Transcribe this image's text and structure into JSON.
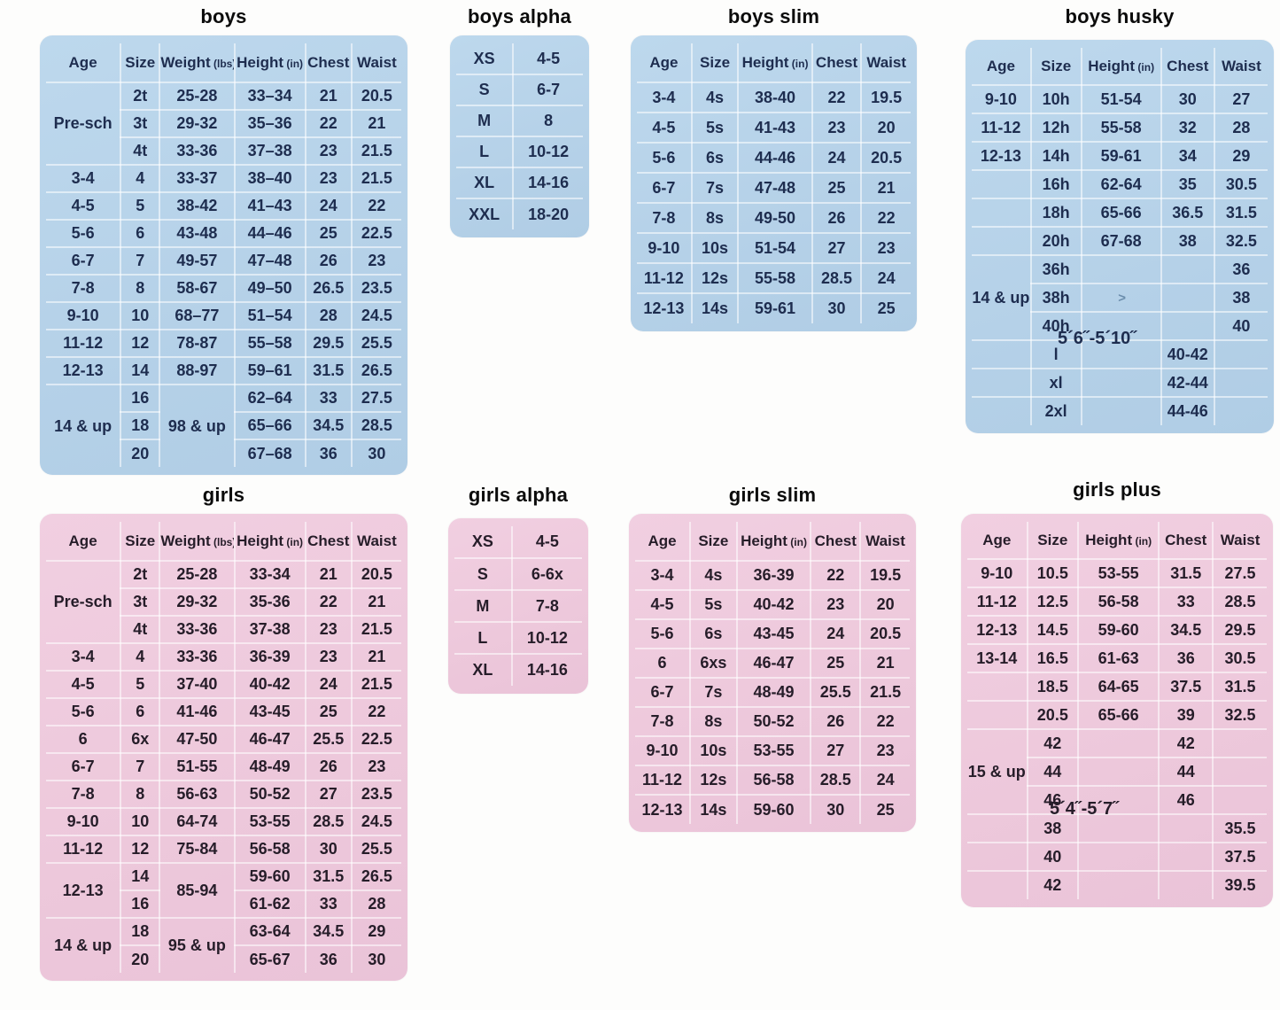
{
  "theme": {
    "blue_card": "#b5d1e8",
    "pink_card": "#edc8db",
    "blue_text": "#1e2d4f",
    "pink_text": "#261d29",
    "title_color": "#0b0b0b",
    "grid_line": "#ffffff"
  },
  "tables": [
    {
      "id": "boys",
      "title": "boys",
      "theme": "blue",
      "columns": [
        {
          "label": "Age"
        },
        {
          "label": "Size"
        },
        {
          "label": "Weight",
          "unit": "(lbs)"
        },
        {
          "label": "Height",
          "unit": "(in)"
        },
        {
          "label": "Chest"
        },
        {
          "label": "Waist"
        }
      ],
      "rows": [
        [
          {
            "t": "Pre-sch",
            "rs": 3,
            "name": "age-group-cell"
          },
          "2t",
          "25-28",
          "33–34",
          "21",
          "20.5"
        ],
        [
          "3t",
          "29-32",
          "35–36",
          "22",
          "21"
        ],
        [
          "4t",
          "33-36",
          "37–38",
          "23",
          "21.5"
        ],
        [
          "3-4",
          "4",
          "33-37",
          "38–40",
          "23",
          "21.5"
        ],
        [
          "4-5",
          "5",
          "38-42",
          "41–43",
          "24",
          "22"
        ],
        [
          "5-6",
          "6",
          "43-48",
          "44–46",
          "25",
          "22.5"
        ],
        [
          "6-7",
          "7",
          "49-57",
          "47–48",
          "26",
          "23"
        ],
        [
          "7-8",
          "8",
          "58-67",
          "49–50",
          "26.5",
          "23.5"
        ],
        [
          "9-10",
          "10",
          "68–77",
          "51–54",
          "28",
          "24.5"
        ],
        [
          "11-12",
          "12",
          "78-87",
          "55–58",
          "29.5",
          "25.5"
        ],
        [
          "12-13",
          "14",
          "88-97",
          "59–61",
          "31.5",
          "26.5"
        ],
        [
          {
            "t": "14 & up",
            "rs": 3,
            "name": "age-group-cell"
          },
          "16",
          {
            "t": "98 & up",
            "rs": 3,
            "name": "weight-group-cell"
          },
          "62–64",
          "33",
          "27.5"
        ],
        [
          "18",
          "65–66",
          "34.5",
          "28.5"
        ],
        [
          "20",
          "67–68",
          "36",
          "30"
        ]
      ]
    },
    {
      "id": "boys-alpha",
      "title": "boys alpha",
      "theme": "blue",
      "rows": [
        [
          "XS",
          "4-5"
        ],
        [
          "S",
          "6-7"
        ],
        [
          "M",
          "8"
        ],
        [
          "L",
          "10-12"
        ],
        [
          "XL",
          "14-16"
        ],
        [
          "XXL",
          "18-20"
        ]
      ]
    },
    {
      "id": "boys-slim",
      "title": "boys slim",
      "theme": "blue",
      "columns": [
        {
          "label": "Age"
        },
        {
          "label": "Size"
        },
        {
          "label": "Height",
          "unit": "(in)"
        },
        {
          "label": "Chest"
        },
        {
          "label": "Waist"
        }
      ],
      "rows": [
        [
          "3-4",
          "4s",
          "38-40",
          "22",
          "19.5"
        ],
        [
          "4-5",
          "5s",
          "41-43",
          "23",
          "20"
        ],
        [
          "5-6",
          "6s",
          "44-46",
          "24",
          "20.5"
        ],
        [
          "6-7",
          "7s",
          "47-48",
          "25",
          "21"
        ],
        [
          "7-8",
          "8s",
          "49-50",
          "26",
          "22"
        ],
        [
          "9-10",
          "10s",
          "51-54",
          "27",
          "23"
        ],
        [
          "11-12",
          "12s",
          "55-58",
          "28.5",
          "24"
        ],
        [
          "12-13",
          "14s",
          "59-61",
          "30",
          "25"
        ]
      ]
    },
    {
      "id": "boys-husky",
      "title": "boys husky",
      "theme": "blue",
      "height_note": "5´6˝-5´10˝",
      "columns": [
        {
          "label": "Age"
        },
        {
          "label": "Size"
        },
        {
          "label": "Height",
          "unit": "(in)"
        },
        {
          "label": "Chest"
        },
        {
          "label": "Waist"
        }
      ],
      "rows": [
        [
          "9-10",
          "10h",
          "51-54",
          "30",
          "27"
        ],
        [
          "11-12",
          "12h",
          "55-58",
          "32",
          "28"
        ],
        [
          "12-13",
          "14h",
          "59-61",
          "34",
          "29"
        ],
        [
          "",
          "16h",
          "62-64",
          "35",
          "30.5"
        ],
        [
          "",
          "18h",
          "65-66",
          "36.5",
          "31.5"
        ],
        [
          "",
          "20h",
          "67-68",
          "38",
          "32.5"
        ],
        [
          {
            "t": "14 & up",
            "rs": 3,
            "name": "age-group-cell"
          },
          "36h",
          "",
          "",
          "36"
        ],
        [
          "38h",
          {
            "t": ">",
            "cls": "arrow",
            "name": "pen-arrow-mark"
          },
          "",
          "38"
        ],
        [
          "40h",
          "",
          "",
          "40"
        ],
        [
          "",
          "l",
          "",
          "40-42",
          ""
        ],
        [
          "",
          "xl",
          "",
          "42-44",
          ""
        ],
        [
          "",
          "2xl",
          "",
          "44-46",
          ""
        ]
      ]
    },
    {
      "id": "girls",
      "title": "girls",
      "theme": "pink",
      "columns": [
        {
          "label": "Age"
        },
        {
          "label": "Size"
        },
        {
          "label": "Weight",
          "unit": "(lbs)"
        },
        {
          "label": "Height",
          "unit": "(in)"
        },
        {
          "label": "Chest"
        },
        {
          "label": "Waist"
        }
      ],
      "rows": [
        [
          {
            "t": "Pre-sch",
            "rs": 3,
            "name": "age-group-cell"
          },
          "2t",
          "25-28",
          "33-34",
          "21",
          "20.5"
        ],
        [
          "3t",
          "29-32",
          "35-36",
          "22",
          "21"
        ],
        [
          "4t",
          "33-36",
          "37-38",
          "23",
          "21.5"
        ],
        [
          "3-4",
          "4",
          "33-36",
          "36-39",
          "23",
          "21"
        ],
        [
          "4-5",
          "5",
          "37-40",
          "40-42",
          "24",
          "21.5"
        ],
        [
          "5-6",
          "6",
          "41-46",
          "43-45",
          "25",
          "22"
        ],
        [
          "6",
          "6x",
          "47-50",
          "46-47",
          "25.5",
          "22.5"
        ],
        [
          "6-7",
          "7",
          "51-55",
          "48-49",
          "26",
          "23"
        ],
        [
          "7-8",
          "8",
          "56-63",
          "50-52",
          "27",
          "23.5"
        ],
        [
          "9-10",
          "10",
          "64-74",
          "53-55",
          "28.5",
          "24.5"
        ],
        [
          "11-12",
          "12",
          "75-84",
          "56-58",
          "30",
          "25.5"
        ],
        [
          {
            "t": "12-13",
            "rs": 2,
            "name": "age-group-cell"
          },
          "14",
          {
            "t": "85-94",
            "rs": 2,
            "name": "weight-group-cell"
          },
          "59-60",
          "31.5",
          "26.5"
        ],
        [
          "16",
          "61-62",
          "33",
          "28"
        ],
        [
          {
            "t": "14 & up",
            "rs": 2,
            "name": "age-group-cell"
          },
          "18",
          {
            "t": "95 & up",
            "rs": 2,
            "name": "weight-group-cell"
          },
          "63-64",
          "34.5",
          "29"
        ],
        [
          "20",
          "65-67",
          "36",
          "30"
        ]
      ]
    },
    {
      "id": "girls-alpha",
      "title": "girls alpha",
      "theme": "pink",
      "rows": [
        [
          "XS",
          "4-5"
        ],
        [
          "S",
          "6-6x"
        ],
        [
          "M",
          "7-8"
        ],
        [
          "L",
          "10-12"
        ],
        [
          "XL",
          "14-16"
        ]
      ]
    },
    {
      "id": "girls-slim",
      "title": "girls slim",
      "theme": "pink",
      "columns": [
        {
          "label": "Age"
        },
        {
          "label": "Size"
        },
        {
          "label": "Height",
          "unit": "(in)"
        },
        {
          "label": "Chest"
        },
        {
          "label": "Waist"
        }
      ],
      "rows": [
        [
          "3-4",
          "4s",
          "36-39",
          "22",
          "19.5"
        ],
        [
          "4-5",
          "5s",
          "40-42",
          "23",
          "20"
        ],
        [
          "5-6",
          "6s",
          "43-45",
          "24",
          "20.5"
        ],
        [
          "6",
          "6xs",
          "46-47",
          "25",
          "21"
        ],
        [
          "6-7",
          "7s",
          "48-49",
          "25.5",
          "21.5"
        ],
        [
          "7-8",
          "8s",
          "50-52",
          "26",
          "22"
        ],
        [
          "9-10",
          "10s",
          "53-55",
          "27",
          "23"
        ],
        [
          "11-12",
          "12s",
          "56-58",
          "28.5",
          "24"
        ],
        [
          "12-13",
          "14s",
          "59-60",
          "30",
          "25"
        ]
      ]
    },
    {
      "id": "girls-plus",
      "title": "girls plus",
      "theme": "pink",
      "height_note": "5´4˝-5´7˝",
      "columns": [
        {
          "label": "Age"
        },
        {
          "label": "Size"
        },
        {
          "label": "Height",
          "unit": "(in)"
        },
        {
          "label": "Chest"
        },
        {
          "label": "Waist"
        }
      ],
      "rows": [
        [
          "9-10",
          "10.5",
          "53-55",
          "31.5",
          "27.5"
        ],
        [
          "11-12",
          "12.5",
          "56-58",
          "33",
          "28.5"
        ],
        [
          "12-13",
          "14.5",
          "59-60",
          "34.5",
          "29.5"
        ],
        [
          "13-14",
          "16.5",
          "61-63",
          "36",
          "30.5"
        ],
        [
          "",
          "18.5",
          "64-65",
          "37.5",
          "31.5"
        ],
        [
          "",
          "20.5",
          "65-66",
          "39",
          "32.5"
        ],
        [
          {
            "t": "15 & up",
            "rs": 3,
            "name": "age-group-cell"
          },
          "42",
          "",
          "42",
          ""
        ],
        [
          "44",
          "",
          "44",
          ""
        ],
        [
          "46",
          "",
          "46",
          ""
        ],
        [
          "",
          "38",
          "",
          "",
          "35.5"
        ],
        [
          "",
          "40",
          "",
          "",
          "37.5"
        ],
        [
          "",
          "42",
          "",
          "",
          "39.5"
        ]
      ]
    }
  ]
}
